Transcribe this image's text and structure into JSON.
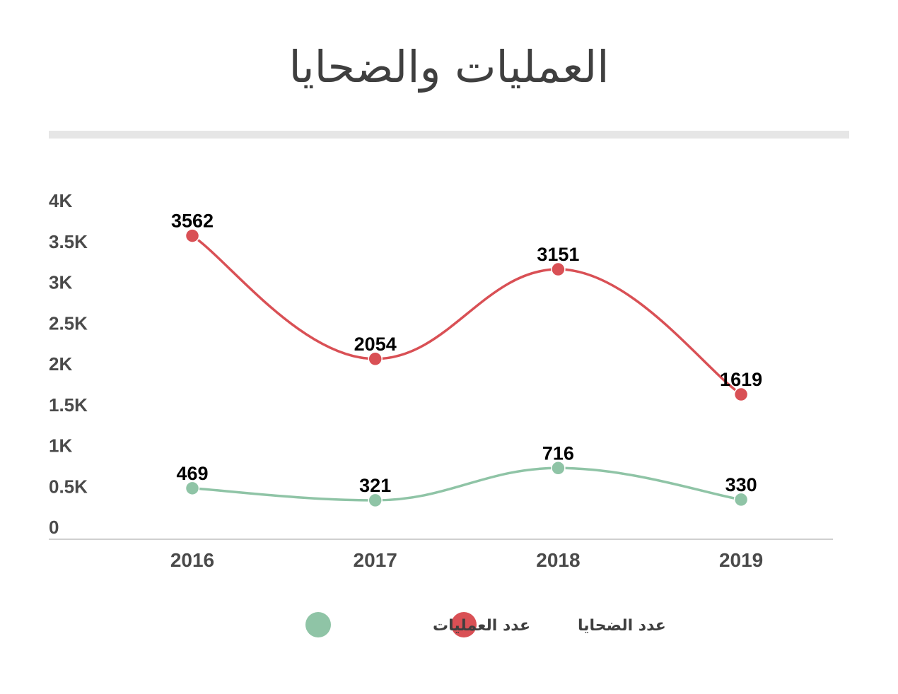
{
  "title": "العمليات والضحايا",
  "chart_data": {
    "type": "line",
    "title": "العمليات والضحايا",
    "categories": [
      "2016",
      "2017",
      "2018",
      "2019"
    ],
    "y_ticks": [
      "0",
      "0.5K",
      "1K",
      "1.5K",
      "2K",
      "2.5K",
      "3K",
      "3.5K",
      "4K"
    ],
    "ylim": [
      0,
      4000
    ],
    "xlabel": "",
    "ylabel": "",
    "grid": false,
    "legend_position": "bottom",
    "smooth": true,
    "series": [
      {
        "name": "عدد الضحايا",
        "values": [
          3562,
          2054,
          3151,
          1619
        ],
        "color": "#d95055"
      },
      {
        "name": "عدد العمليات",
        "values": [
          469,
          321,
          716,
          330
        ],
        "color": "#8fc4a6"
      }
    ]
  }
}
